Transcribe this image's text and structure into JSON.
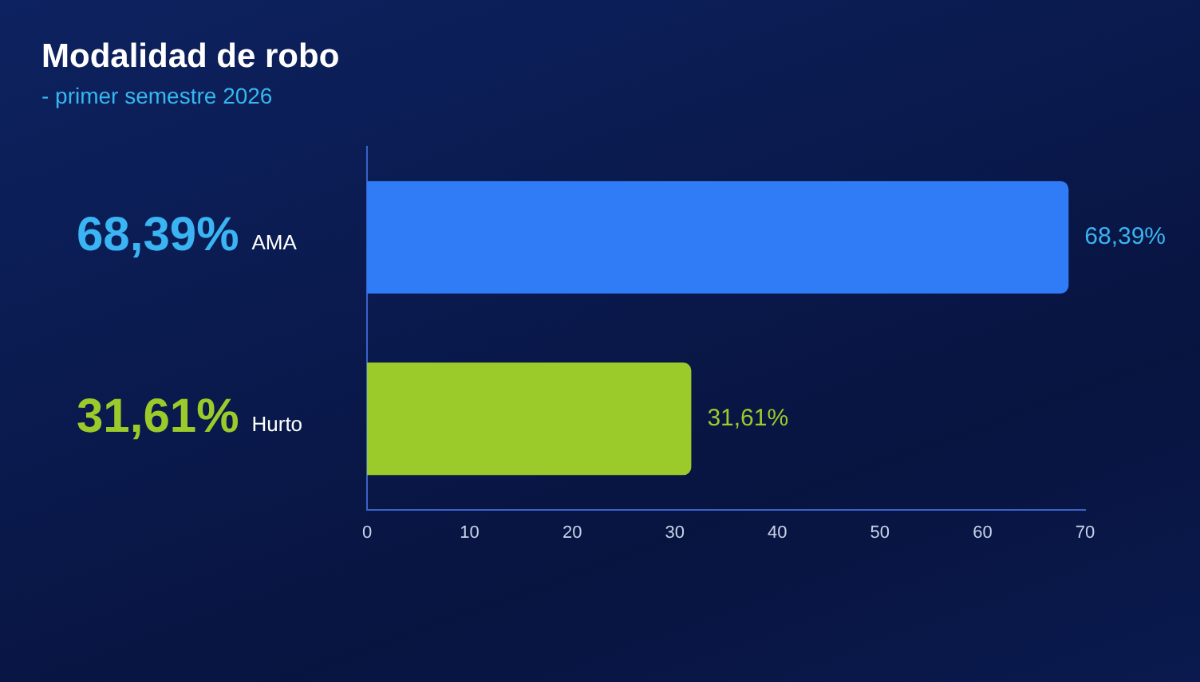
{
  "chart_data": {
    "type": "bar",
    "orientation": "horizontal",
    "title": "Modalidad de robo",
    "subtitle": "- primer semestre 2026",
    "categories": [
      "AMA",
      "Hurto"
    ],
    "values": [
      68.39,
      31.61
    ],
    "colors": [
      "#2f7cf6",
      "#9acb2a"
    ],
    "value_labels": [
      "68,39%",
      "31,61%"
    ],
    "xlim": [
      0,
      70
    ],
    "xticks": [
      0,
      10,
      20,
      30,
      40,
      50,
      60,
      70
    ],
    "grid": false,
    "legend": false
  }
}
